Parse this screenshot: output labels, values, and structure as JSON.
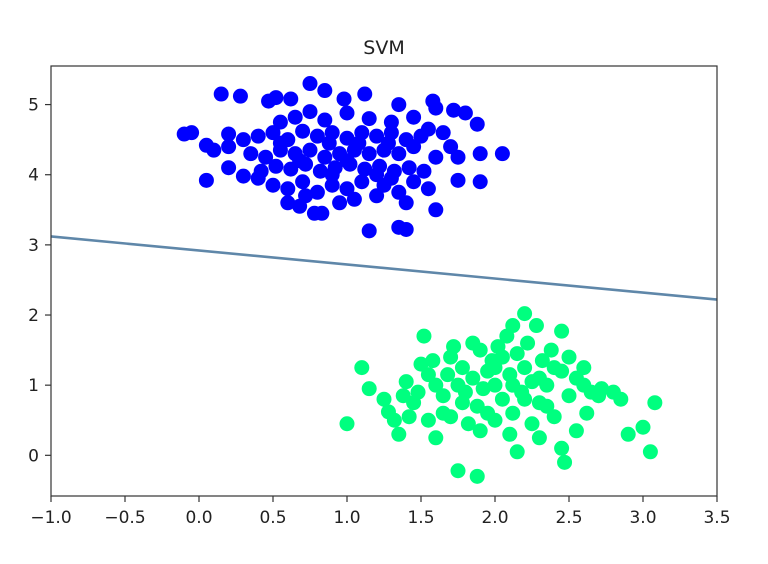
{
  "chart_data": {
    "type": "scatter",
    "title": "SVM",
    "xlabel": "",
    "ylabel": "",
    "xlim": [
      -1.0,
      3.5
    ],
    "ylim": [
      -0.58,
      5.55
    ],
    "xticks": [
      "−1.0",
      "−0.5",
      "0.0",
      "0.5",
      "1.0",
      "1.5",
      "2.0",
      "2.5",
      "3.0",
      "3.5"
    ],
    "yticks": [
      "0",
      "1",
      "2",
      "3",
      "4",
      "5"
    ],
    "grid": false,
    "legend": "none",
    "colors": {
      "class_a": "#0000ff",
      "class_b": "#00ff7f",
      "boundary": "#5f87a9",
      "axes": "#333333"
    },
    "series": [
      {
        "values": [
          [
            -0.1,
            4.58
          ],
          [
            -0.05,
            4.6
          ],
          [
            0.15,
            5.15
          ],
          [
            0.28,
            5.12
          ],
          [
            0.47,
            5.05
          ],
          [
            0.52,
            5.1
          ],
          [
            0.62,
            5.08
          ],
          [
            0.75,
            5.3
          ],
          [
            0.85,
            5.2
          ],
          [
            0.98,
            5.08
          ],
          [
            1.12,
            5.15
          ],
          [
            1.35,
            5.0
          ],
          [
            1.58,
            5.05
          ],
          [
            1.6,
            4.95
          ],
          [
            1.72,
            4.92
          ],
          [
            1.8,
            4.88
          ],
          [
            1.88,
            4.72
          ],
          [
            0.05,
            4.42
          ],
          [
            0.1,
            4.35
          ],
          [
            0.2,
            4.4
          ],
          [
            0.3,
            4.5
          ],
          [
            0.4,
            4.55
          ],
          [
            0.5,
            4.6
          ],
          [
            0.6,
            4.5
          ],
          [
            0.7,
            4.62
          ],
          [
            0.8,
            4.55
          ],
          [
            0.9,
            4.6
          ],
          [
            1.0,
            4.52
          ],
          [
            1.1,
            4.6
          ],
          [
            1.2,
            4.55
          ],
          [
            1.3,
            4.6
          ],
          [
            1.4,
            4.5
          ],
          [
            1.5,
            4.55
          ],
          [
            1.55,
            4.65
          ],
          [
            1.65,
            4.6
          ],
          [
            1.7,
            4.4
          ],
          [
            1.45,
            4.4
          ],
          [
            0.35,
            4.3
          ],
          [
            0.45,
            4.25
          ],
          [
            0.55,
            4.35
          ],
          [
            0.65,
            4.3
          ],
          [
            0.75,
            4.35
          ],
          [
            0.85,
            4.25
          ],
          [
            0.95,
            4.3
          ],
          [
            1.05,
            4.35
          ],
          [
            1.15,
            4.3
          ],
          [
            1.25,
            4.35
          ],
          [
            1.35,
            4.3
          ],
          [
            0.42,
            4.05
          ],
          [
            0.52,
            4.12
          ],
          [
            0.62,
            4.08
          ],
          [
            0.72,
            4.15
          ],
          [
            0.82,
            4.05
          ],
          [
            0.92,
            4.1
          ],
          [
            1.02,
            4.15
          ],
          [
            1.12,
            4.08
          ],
          [
            1.22,
            4.12
          ],
          [
            1.32,
            4.05
          ],
          [
            1.42,
            4.1
          ],
          [
            1.52,
            4.05
          ],
          [
            0.05,
            3.92
          ],
          [
            0.2,
            4.1
          ],
          [
            0.5,
            3.85
          ],
          [
            0.6,
            3.8
          ],
          [
            0.7,
            3.9
          ],
          [
            0.8,
            3.75
          ],
          [
            0.9,
            3.85
          ],
          [
            1.0,
            3.8
          ],
          [
            1.1,
            3.9
          ],
          [
            1.25,
            3.85
          ],
          [
            1.35,
            3.75
          ],
          [
            1.45,
            3.9
          ],
          [
            1.55,
            3.8
          ],
          [
            1.75,
            3.92
          ],
          [
            1.9,
            3.9
          ],
          [
            2.05,
            4.3
          ],
          [
            1.9,
            4.3
          ],
          [
            1.75,
            4.25
          ],
          [
            0.6,
            3.6
          ],
          [
            0.68,
            3.55
          ],
          [
            0.78,
            3.45
          ],
          [
            0.83,
            3.45
          ],
          [
            0.95,
            3.6
          ],
          [
            1.05,
            3.65
          ],
          [
            1.2,
            3.7
          ],
          [
            1.4,
            3.6
          ],
          [
            1.6,
            3.5
          ],
          [
            1.15,
            3.2
          ],
          [
            1.35,
            3.25
          ],
          [
            1.4,
            3.22
          ],
          [
            0.55,
            4.75
          ],
          [
            0.65,
            4.82
          ],
          [
            0.75,
            4.9
          ],
          [
            0.85,
            4.78
          ],
          [
            1.0,
            4.88
          ],
          [
            1.15,
            4.8
          ],
          [
            1.3,
            4.75
          ],
          [
            1.45,
            4.82
          ],
          [
            0.88,
            4.45
          ],
          [
            1.08,
            4.45
          ],
          [
            1.28,
            4.45
          ],
          [
            0.68,
            4.2
          ],
          [
            0.9,
            4.0
          ],
          [
            1.2,
            4.0
          ],
          [
            0.72,
            3.7
          ],
          [
            1.3,
            3.95
          ],
          [
            0.55,
            4.45
          ],
          [
            1.0,
            4.2
          ],
          [
            0.4,
            3.95
          ],
          [
            0.3,
            3.98
          ],
          [
            1.6,
            4.25
          ],
          [
            0.2,
            4.58
          ]
        ]
      },
      {
        "values": [
          [
            1.0,
            0.45
          ],
          [
            1.1,
            1.25
          ],
          [
            1.15,
            0.95
          ],
          [
            1.25,
            0.8
          ],
          [
            1.28,
            0.62
          ],
          [
            1.32,
            0.5
          ],
          [
            1.4,
            1.05
          ],
          [
            1.45,
            0.75
          ],
          [
            1.5,
            1.3
          ],
          [
            1.55,
            1.15
          ],
          [
            1.52,
            1.7
          ],
          [
            1.6,
            1.0
          ],
          [
            1.65,
            0.85
          ],
          [
            1.7,
            1.4
          ],
          [
            1.72,
            1.55
          ],
          [
            1.78,
            1.25
          ],
          [
            1.8,
            0.9
          ],
          [
            1.85,
            1.6
          ],
          [
            1.88,
            0.7
          ],
          [
            1.9,
            1.5
          ],
          [
            1.95,
            1.2
          ],
          [
            1.98,
            1.35
          ],
          [
            2.0,
            1.0
          ],
          [
            2.02,
            1.55
          ],
          [
            2.05,
            0.8
          ],
          [
            2.08,
            1.7
          ],
          [
            2.1,
            1.15
          ],
          [
            2.12,
            0.6
          ],
          [
            2.15,
            1.45
          ],
          [
            2.18,
            0.9
          ],
          [
            2.2,
            1.25
          ],
          [
            2.22,
            1.6
          ],
          [
            2.25,
            1.05
          ],
          [
            2.28,
            1.85
          ],
          [
            2.3,
            0.75
          ],
          [
            2.32,
            1.35
          ],
          [
            2.35,
            1.0
          ],
          [
            2.38,
            1.5
          ],
          [
            2.4,
            0.55
          ],
          [
            2.45,
            1.2
          ],
          [
            2.5,
            0.85
          ],
          [
            2.55,
            1.1
          ],
          [
            2.6,
            1.0
          ],
          [
            2.65,
            0.9
          ],
          [
            2.7,
            0.85
          ],
          [
            2.8,
            0.9
          ],
          [
            2.85,
            0.8
          ],
          [
            2.9,
            0.3
          ],
          [
            3.0,
            0.4
          ],
          [
            3.05,
            0.05
          ],
          [
            3.08,
            0.75
          ],
          [
            2.12,
            1.85
          ],
          [
            2.2,
            2.02
          ],
          [
            2.45,
            1.77
          ],
          [
            1.75,
            1.0
          ],
          [
            1.82,
            0.45
          ],
          [
            1.9,
            0.35
          ],
          [
            2.0,
            0.5
          ],
          [
            2.1,
            0.3
          ],
          [
            2.15,
            0.05
          ],
          [
            2.3,
            0.25
          ],
          [
            2.45,
            0.1
          ],
          [
            2.47,
            -0.1
          ],
          [
            2.55,
            0.35
          ],
          [
            1.55,
            0.5
          ],
          [
            1.6,
            0.25
          ],
          [
            1.65,
            0.6
          ],
          [
            1.42,
            0.55
          ],
          [
            1.35,
            0.3
          ],
          [
            1.75,
            -0.22
          ],
          [
            1.88,
            -0.3
          ],
          [
            2.62,
            0.6
          ],
          [
            2.72,
            0.95
          ],
          [
            2.4,
            1.25
          ],
          [
            2.3,
            1.1
          ],
          [
            2.0,
            1.25
          ],
          [
            1.92,
            0.95
          ],
          [
            1.95,
            0.6
          ],
          [
            2.05,
            1.4
          ],
          [
            1.68,
            1.15
          ],
          [
            1.58,
            1.35
          ],
          [
            1.48,
            0.9
          ],
          [
            1.38,
            0.85
          ],
          [
            2.25,
            0.45
          ],
          [
            2.35,
            0.7
          ],
          [
            2.5,
            1.4
          ],
          [
            1.85,
            1.1
          ],
          [
            2.12,
            1.0
          ],
          [
            2.2,
            0.8
          ],
          [
            1.78,
            0.75
          ],
          [
            1.7,
            0.55
          ],
          [
            2.6,
            1.25
          ]
        ]
      }
    ],
    "boundary_line": {
      "x": [
        -1.0,
        3.5
      ],
      "y": [
        3.12,
        2.22
      ]
    }
  }
}
